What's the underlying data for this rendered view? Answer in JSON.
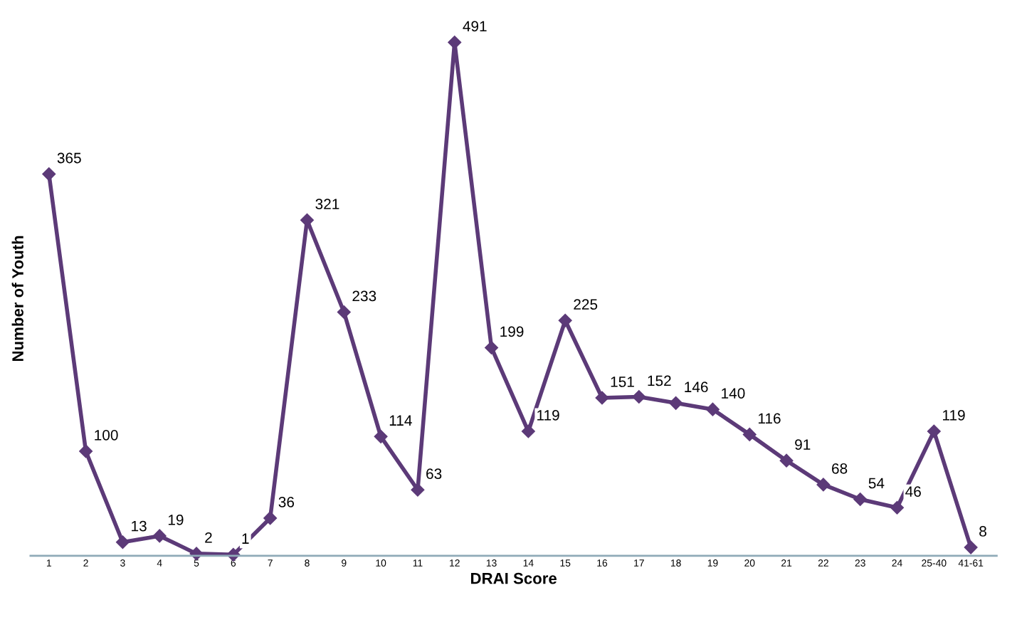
{
  "chart_data": {
    "type": "line",
    "xlabel": "DRAI Score",
    "ylabel": "Number of Youth",
    "categories": [
      "1",
      "2",
      "3",
      "4",
      "5",
      "6",
      "7",
      "8",
      "9",
      "10",
      "11",
      "12",
      "13",
      "14",
      "15",
      "16",
      "17",
      "18",
      "19",
      "20",
      "21",
      "22",
      "23",
      "24",
      "25-40",
      "41-61"
    ],
    "series": [
      {
        "color": "#5c3a78",
        "values": [
          365,
          100,
          13,
          19,
          2,
          1,
          36,
          321,
          233,
          114,
          63,
          491,
          199,
          119,
          225,
          151,
          152,
          146,
          140,
          116,
          91,
          68,
          54,
          46,
          119,
          8
        ]
      }
    ],
    "data_labels": true,
    "marker": "diamond",
    "line_style": "solid",
    "grid": false,
    "legend": false,
    "tick_labels": "x"
  }
}
